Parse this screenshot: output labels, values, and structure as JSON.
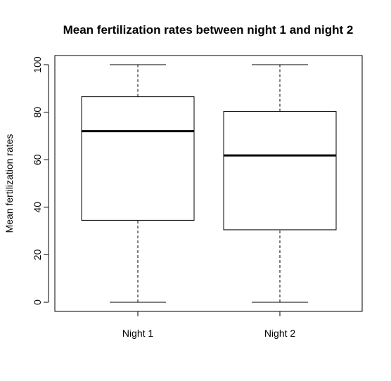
{
  "chart_data": {
    "type": "boxplot",
    "title": "Mean fertilization rates between night 1 and night 2",
    "xlabel": "",
    "ylabel": "Mean fertilization rates",
    "ylim": [
      -4,
      104
    ],
    "yticks": [
      "0",
      "20",
      "40",
      "60",
      "80",
      "100"
    ],
    "categories": [
      "Night 1",
      "Night 2"
    ],
    "boxes": [
      {
        "category": "Night 1",
        "min": 0,
        "q1": 34.5,
        "median": 72,
        "q3": 86.5,
        "max": 100
      },
      {
        "category": "Night 2",
        "min": 0,
        "q1": 30.5,
        "median": 61.8,
        "q3": 80.3,
        "max": 100
      }
    ],
    "grid": false,
    "legend": "none"
  }
}
